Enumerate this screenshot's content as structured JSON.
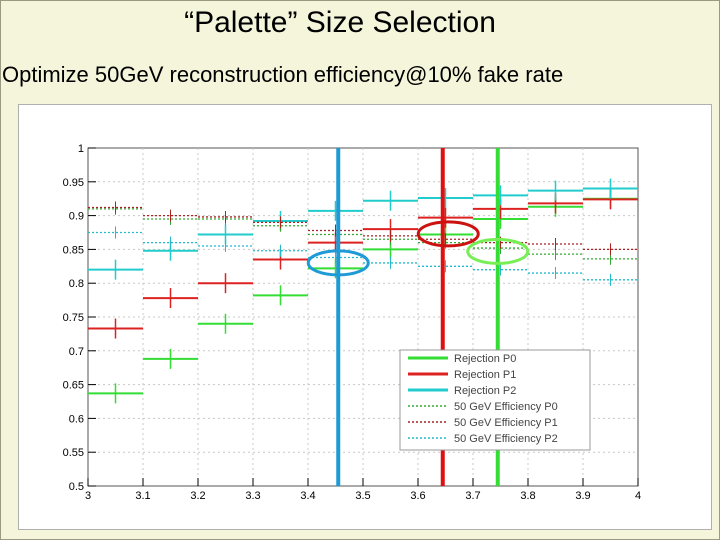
{
  "slide": {
    "title": "“Palette” Size Selection",
    "subtitle": "Optimize 50GeV reconstruction efficiency@10% fake rate"
  },
  "chart_data": {
    "type": "line",
    "style": "step-histogram",
    "xlim": [
      3,
      4
    ],
    "ylim": [
      0.5,
      1.0
    ],
    "xticks": [
      3,
      3.1,
      3.2,
      3.3,
      3.4,
      3.5,
      3.6,
      3.7,
      3.8,
      3.9,
      4
    ],
    "xtick_labels": [
      "3",
      "3.1",
      "3.2",
      "3.3",
      "3.4",
      "3.5",
      "3.6",
      "3.7",
      "3.8",
      "3.9",
      "4"
    ],
    "yticks": [
      0.5,
      0.55,
      0.6,
      0.65,
      0.7,
      0.75,
      0.8,
      0.85,
      0.9,
      0.95,
      1
    ],
    "ytick_labels": [
      "0.5",
      "0.55",
      "0.6",
      "0.65",
      "0.7",
      "0.75",
      "0.8",
      "0.85",
      "0.9",
      "0.95",
      "1"
    ],
    "grid": true,
    "bin_edges": [
      3.0,
      3.1,
      3.2,
      3.3,
      3.4,
      3.5,
      3.6,
      3.7,
      3.8,
      3.9,
      4.0
    ],
    "legend_position": "bottom-right",
    "series": [
      {
        "name": "Rejection P0",
        "color": "#33dd33",
        "style": "solid",
        "values": [
          0.637,
          0.688,
          0.74,
          0.782,
          0.822,
          0.85,
          0.872,
          0.895,
          0.913,
          0.925
        ]
      },
      {
        "name": "Rejection P1",
        "color": "#dd2222",
        "style": "solid",
        "values": [
          0.733,
          0.778,
          0.8,
          0.835,
          0.86,
          0.88,
          0.897,
          0.91,
          0.918,
          0.924
        ]
      },
      {
        "name": "Rejection P2",
        "color": "#22cccc",
        "style": "solid",
        "values": [
          0.82,
          0.848,
          0.872,
          0.892,
          0.907,
          0.922,
          0.926,
          0.93,
          0.937,
          0.94
        ]
      },
      {
        "name": "50 GeV Efficiency P0",
        "color": "#33aa33",
        "style": "dotted",
        "values": [
          0.91,
          0.895,
          0.895,
          0.885,
          0.872,
          0.865,
          0.86,
          0.852,
          0.843,
          0.836
        ]
      },
      {
        "name": "50 GeV Efficiency P1",
        "color": "#aa2222",
        "style": "dotted",
        "values": [
          0.912,
          0.9,
          0.898,
          0.89,
          0.878,
          0.87,
          0.865,
          0.86,
          0.858,
          0.85
        ]
      },
      {
        "name": "50 GeV Efficiency P2",
        "color": "#22bbcc",
        "style": "dotted",
        "values": [
          0.875,
          0.86,
          0.855,
          0.848,
          0.838,
          0.83,
          0.825,
          0.82,
          0.815,
          0.805
        ]
      }
    ],
    "annotations": {
      "vertical_lines": [
        {
          "x": 3.455,
          "color": "#1e9ad6"
        },
        {
          "x": 3.645,
          "color": "#dd1111"
        },
        {
          "x": 3.745,
          "color": "#33dd33"
        }
      ],
      "circles": [
        {
          "x": 3.455,
          "y": 0.83,
          "color": "#1e9ad6"
        },
        {
          "x": 3.655,
          "y": 0.873,
          "color": "#cc1111"
        },
        {
          "x": 3.745,
          "y": 0.847,
          "color": "#77ee55"
        }
      ]
    }
  }
}
